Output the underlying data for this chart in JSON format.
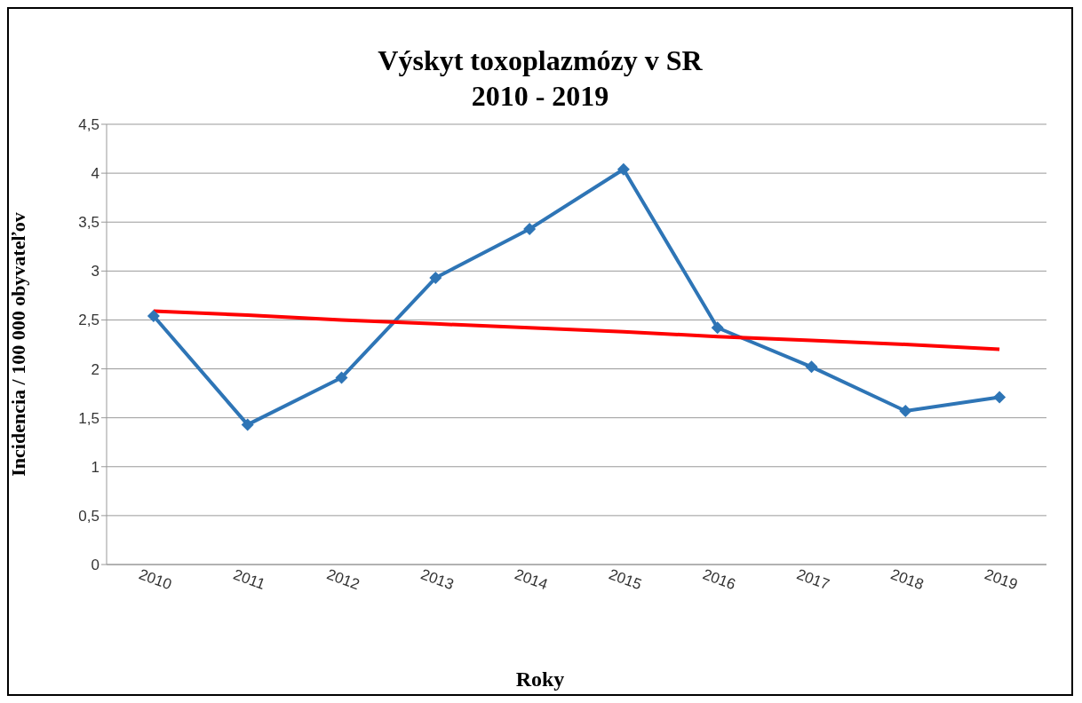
{
  "chart_data": {
    "type": "line",
    "title": "Výskyt toxoplazmózy v SR\n2010 - 2019",
    "xlabel": "Roky",
    "ylabel": "Incidencia / 100 000 obyvateľov",
    "categories": [
      "2010",
      "2011",
      "2012",
      "2013",
      "2014",
      "2015",
      "2016",
      "2017",
      "2018",
      "2019"
    ],
    "series": [
      {
        "color": "#2e75b6",
        "values": [
          2.54,
          1.43,
          1.91,
          2.93,
          3.43,
          4.04,
          2.42,
          2.02,
          1.57,
          1.71
        ],
        "marker": "diamond"
      },
      {
        "type": "line",
        "color": "#ff0000",
        "values": [
          2.59,
          2.55,
          2.5,
          2.46,
          2.42,
          2.38,
          2.33,
          2.29,
          2.25,
          2.2
        ],
        "marker": "none"
      }
    ],
    "ylim": [
      0,
      4.5
    ],
    "yticks": [
      {
        "value": 0,
        "label": "0"
      },
      {
        "value": 0.5,
        "label": "0,5"
      },
      {
        "value": 1,
        "label": "1"
      },
      {
        "value": 1.5,
        "label": "1,5"
      },
      {
        "value": 2,
        "label": "2"
      },
      {
        "value": 2.5,
        "label": "2,5"
      },
      {
        "value": 3,
        "label": "3"
      },
      {
        "value": 3.5,
        "label": "3,5"
      },
      {
        "value": 4,
        "label": "4"
      },
      {
        "value": 4.5,
        "label": "4,5"
      }
    ],
    "grid": "y",
    "legend": false,
    "line_style": "solid"
  }
}
